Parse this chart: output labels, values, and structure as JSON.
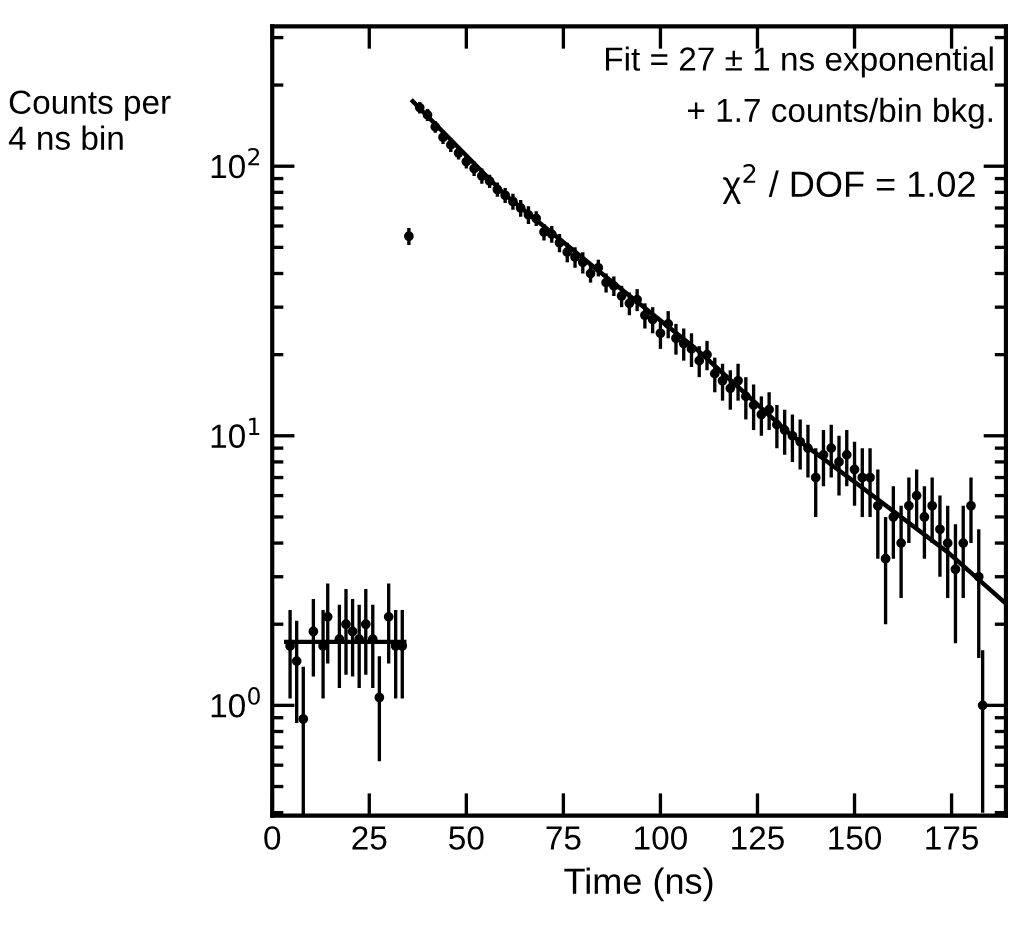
{
  "chart_data": {
    "type": "scatter",
    "xlabel": "Time (ns)",
    "ylabel": "Counts per\n4 ns bin",
    "log": "y",
    "xlim": [
      0,
      189
    ],
    "ylim": [
      0.39,
      330
    ],
    "xticks": [
      0,
      25,
      50,
      75,
      100,
      125,
      150,
      175
    ],
    "yticks": [
      {
        "value": 1,
        "label": "10$^{0}$"
      },
      {
        "value": 10,
        "label": "10$^{1}$"
      },
      {
        "value": 100,
        "label": "10$^{2}$"
      }
    ],
    "grid": false,
    "marker": "circle",
    "annotations": [
      "Fit = 27 ± 1 ns exponential",
      "+ 1.7 counts/bin bkg.",
      "χ$^{2}$ / DOF = 1.02"
    ],
    "series": [
      {
        "color": "#000000",
        "x": [
          4.6,
          6.3,
          8.0,
          10.6,
          13.1,
          14.3,
          17.3,
          19.0,
          20.7,
          22.4,
          24.1,
          25.9,
          27.6,
          30.0,
          31.8,
          33.5,
          35.2,
          38,
          40,
          42,
          44,
          46,
          48,
          50,
          52,
          54,
          56,
          58,
          60,
          62,
          64,
          66,
          68,
          70,
          72,
          74,
          76,
          78,
          80,
          82,
          84,
          86,
          88,
          90,
          92,
          94,
          96,
          98,
          100,
          102,
          104,
          106,
          108,
          110,
          112,
          114,
          116,
          118,
          120,
          122,
          124,
          126,
          128,
          130,
          132,
          134,
          136,
          138,
          140,
          142,
          144,
          146,
          148,
          150,
          152,
          154,
          156,
          158,
          160,
          162,
          164,
          166,
          168,
          170,
          172,
          174,
          176,
          178,
          180,
          182,
          183
        ],
        "values": [
          1.66,
          1.46,
          0.89,
          1.88,
          1.66,
          2.13,
          1.76,
          2.0,
          1.88,
          1.76,
          2.0,
          1.76,
          1.07,
          2.13,
          1.66,
          1.66,
          55,
          165,
          155,
          140,
          128,
          120,
          112,
          104,
          98,
          92,
          88,
          82,
          78,
          74,
          70,
          66,
          64,
          57,
          56,
          52,
          48,
          46,
          44,
          40,
          42,
          37,
          36,
          33,
          31,
          32,
          28,
          27,
          24,
          26,
          23,
          22,
          21,
          19,
          20,
          17,
          16,
          15,
          16,
          14,
          13,
          12,
          12.5,
          11,
          10.5,
          10,
          9.5,
          9,
          7,
          8.5,
          9,
          8,
          8.5,
          7.5,
          7,
          7,
          5.5,
          3.5,
          5,
          4,
          5.5,
          6,
          5,
          5.5,
          4.5,
          4,
          3.2,
          4,
          5.5,
          3,
          1.0
        ],
        "errors": [
          0.6,
          0.6,
          0.5,
          0.6,
          0.6,
          0.7,
          0.6,
          0.7,
          0.6,
          0.6,
          0.7,
          0.6,
          0.45,
          0.7,
          0.6,
          0.6,
          4,
          8,
          8,
          7,
          7,
          7,
          6,
          6,
          6,
          6,
          5,
          5,
          5,
          5,
          5,
          5,
          4,
          4,
          4,
          4,
          4,
          4,
          4,
          3,
          3,
          3,
          3,
          3,
          3,
          3,
          3,
          3,
          3,
          3,
          3,
          3,
          3,
          2.5,
          2.5,
          2.5,
          2.5,
          2.5,
          2.5,
          2.5,
          2.5,
          2,
          2,
          2,
          2,
          2,
          2,
          2,
          2,
          2,
          2,
          2,
          2,
          2,
          2,
          2,
          2,
          1.5,
          1.5,
          1.5,
          1.5,
          1.5,
          1.5,
          1.5,
          1.5,
          1.5,
          1.5,
          1.5,
          1.5,
          1.5,
          0.6
        ]
      },
      {
        "type": "line",
        "color": "#000000",
        "marker": "none",
        "x": [
          36.2,
          59.7,
          87.2,
          109.2,
          133.2,
          151.5,
          174,
          188.8
        ],
        "values": [
          174,
          79,
          37.6,
          21,
          10.2,
          6.5,
          3.7,
          2.4
        ]
      },
      {
        "type": "line",
        "color": "#000000",
        "marker": "none",
        "x": [
          3.6,
          34
        ],
        "values": [
          1.72,
          1.72
        ]
      }
    ]
  }
}
